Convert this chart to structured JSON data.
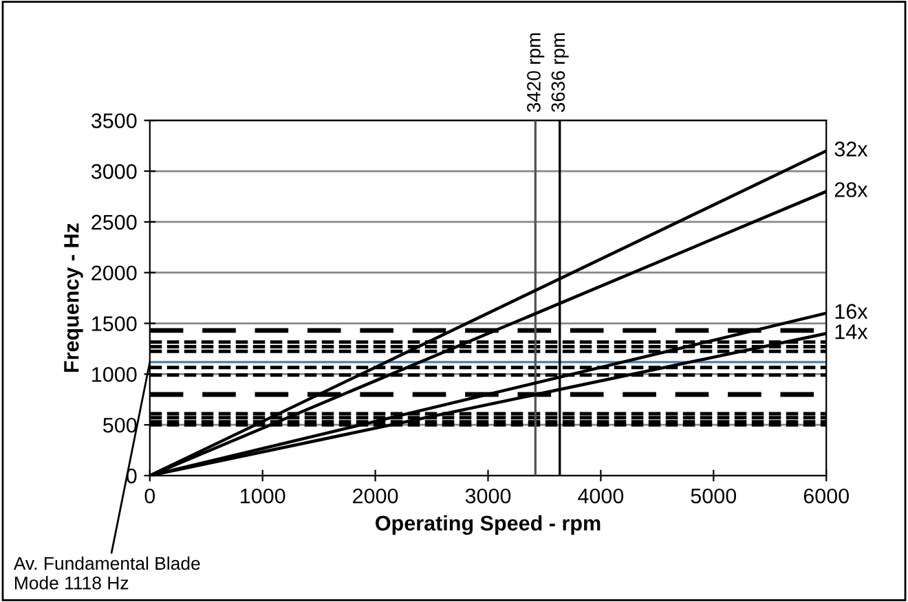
{
  "chart_data": {
    "type": "line",
    "xlabel": "Operating Speed - rpm",
    "ylabel": "Frequency - Hz",
    "xlim": [
      0,
      6000
    ],
    "xticks": [
      0,
      1000,
      2000,
      3000,
      4000,
      5000,
      6000
    ],
    "ylim": [
      0,
      3500
    ],
    "yticks": [
      0,
      500,
      1000,
      1500,
      2000,
      2500,
      3000,
      3500
    ],
    "grid": "y",
    "legend": false,
    "x": [
      0,
      6000
    ],
    "series": [
      {
        "name": "32x",
        "color": "#000000",
        "values": [
          0,
          3200
        ]
      },
      {
        "name": "28x",
        "color": "#000000",
        "values": [
          0,
          2800
        ]
      },
      {
        "name": "16x",
        "color": "#000000",
        "values": [
          0,
          1600
        ]
      },
      {
        "name": "14x",
        "color": "#000000",
        "values": [
          0,
          1400
        ]
      }
    ],
    "ref_lines": [
      {
        "axis": "x",
        "value": 3420,
        "label": "3420 rpm",
        "color": "#555555",
        "line_style": "solid"
      },
      {
        "axis": "x",
        "value": 3636,
        "label": "3636 rpm",
        "color": "#000000",
        "line_style": "solid"
      },
      {
        "axis": "y",
        "value": 1430,
        "color": "#000000",
        "line_style": "dashed"
      },
      {
        "axis": "y",
        "value": 1316,
        "color": "#000000",
        "line_style": "dotted"
      },
      {
        "axis": "y",
        "value": 1270,
        "color": "#000000",
        "line_style": "dotted"
      },
      {
        "axis": "y",
        "value": 1224,
        "color": "#000000",
        "line_style": "dotted"
      },
      {
        "axis": "y",
        "value": 1118,
        "color": "#4f7fa8",
        "line_style": "solid"
      },
      {
        "axis": "y",
        "value": 1065,
        "color": "#000000",
        "line_style": "dotted"
      },
      {
        "axis": "y",
        "value": 990,
        "color": "#000000",
        "line_style": "dotted"
      },
      {
        "axis": "y",
        "value": 800,
        "color": "#000000",
        "line_style": "dashed"
      },
      {
        "axis": "y",
        "value": 610,
        "color": "#000000",
        "line_style": "dotted"
      },
      {
        "axis": "y",
        "value": 570,
        "color": "#000000",
        "line_style": "dotted"
      },
      {
        "axis": "y",
        "value": 530,
        "color": "#000000",
        "line_style": "dotted"
      },
      {
        "axis": "y",
        "value": 500,
        "color": "#000000",
        "line_style": "dotted"
      }
    ],
    "annotations": [
      {
        "text": "Av. Fundamental Blade\nMode 1118 Hz",
        "x": 0,
        "y": 1118
      }
    ]
  }
}
